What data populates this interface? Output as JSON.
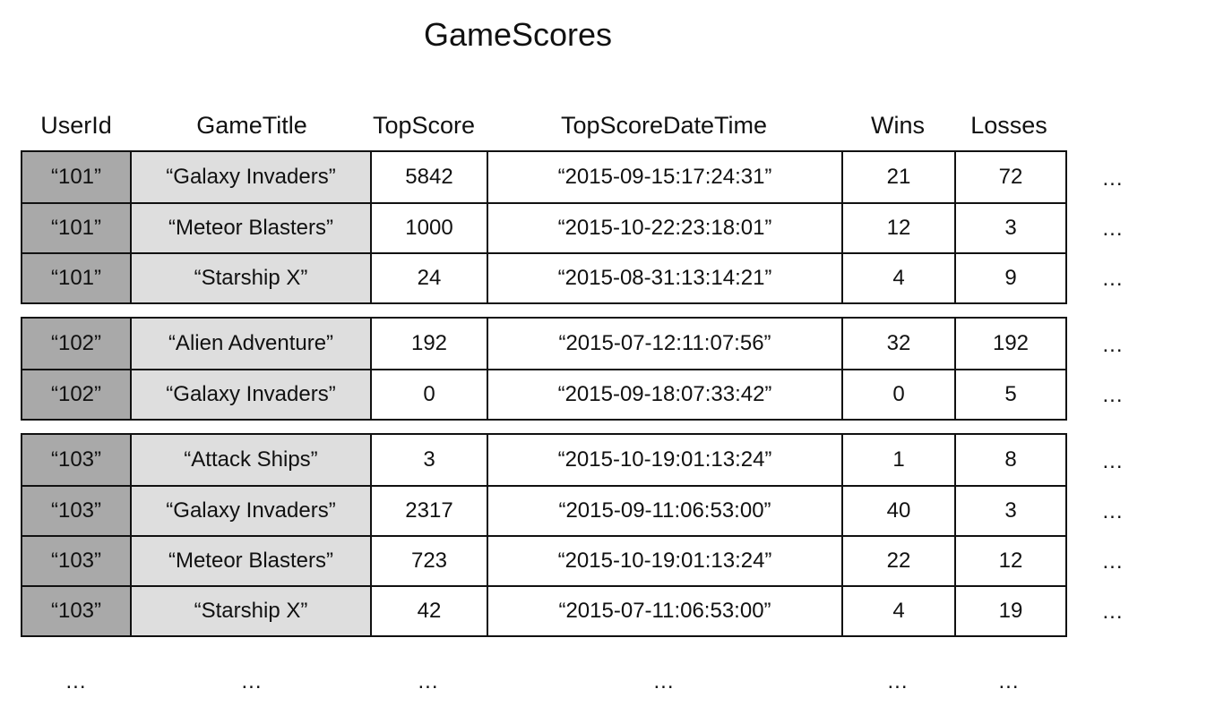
{
  "title": "GameScores",
  "columns": [
    "UserId",
    "GameTitle",
    "TopScore",
    "TopScoreDateTime",
    "Wins",
    "Losses"
  ],
  "ellipsis": "...",
  "groups": [
    {
      "rows": [
        [
          "“101”",
          "“Galaxy Invaders”",
          "5842",
          "“2015-09-15:17:24:31”",
          "21",
          "72"
        ],
        [
          "“101”",
          "“Meteor Blasters”",
          "1000",
          "“2015-10-22:23:18:01”",
          "12",
          "3"
        ],
        [
          "“101”",
          "“Starship X”",
          "24",
          "“2015-08-31:13:14:21”",
          "4",
          "9"
        ]
      ]
    },
    {
      "rows": [
        [
          "“102”",
          "“Alien Adventure”",
          "192",
          "“2015-07-12:11:07:56”",
          "32",
          "192"
        ],
        [
          "“102”",
          "“Galaxy Invaders”",
          "0",
          "“2015-09-18:07:33:42”",
          "0",
          "5"
        ]
      ]
    },
    {
      "rows": [
        [
          "“103”",
          "“Attack Ships”",
          "3",
          "“2015-10-19:01:13:24”",
          "1",
          "8"
        ],
        [
          "“103”",
          "“Galaxy Invaders”",
          "2317",
          "“2015-09-11:06:53:00”",
          "40",
          "3"
        ],
        [
          "“103”",
          "“Meteor Blasters”",
          "723",
          "“2015-10-19:01:13:24”",
          "22",
          "12"
        ],
        [
          "“103”",
          "“Starship X”",
          "42",
          "“2015-07-11:06:53:00”",
          "4",
          "19"
        ]
      ]
    }
  ]
}
